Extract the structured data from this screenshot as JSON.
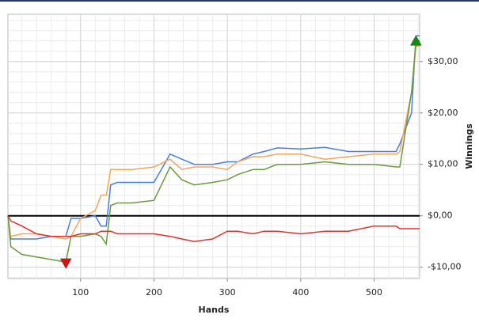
{
  "chart_data": {
    "type": "line",
    "x_label": "Hands",
    "y_label": "Winnings",
    "xlim": [
      1,
      562
    ],
    "ylim": [
      -12.2,
      39.2
    ],
    "xticks": [
      100,
      200,
      300,
      400,
      500
    ],
    "yticks": [
      {
        "value": -10,
        "label": "-$10,00"
      },
      {
        "value": 0,
        "label": "$0,00"
      },
      {
        "value": 10,
        "label": "$10,00"
      },
      {
        "value": 20,
        "label": "$20,00"
      },
      {
        "value": 30,
        "label": "$30,00"
      }
    ],
    "grid": true,
    "x": [
      1,
      5,
      20,
      40,
      60,
      80,
      87,
      100,
      120,
      128,
      135,
      141,
      150,
      170,
      200,
      222,
      238,
      255,
      280,
      300,
      314,
      335,
      350,
      368,
      400,
      433,
      465,
      500,
      530,
      535,
      551,
      557,
      562
    ],
    "series": [
      {
        "color": "#4a7de0",
        "values": [
          0,
          -4.5,
          -4.5,
          -4.5,
          -4,
          -4,
          -0.5,
          -0.5,
          0,
          -2,
          -2,
          6,
          6.5,
          6.5,
          6.5,
          12,
          11,
          10,
          10,
          10.5,
          10.5,
          12,
          12.5,
          13.2,
          13,
          13.3,
          12.5,
          12.5,
          12.5,
          14,
          20,
          35,
          35
        ]
      },
      {
        "color": "#f5a55a",
        "values": [
          0,
          -4,
          -3.5,
          -3.5,
          -4,
          -4.5,
          -4,
          -0.5,
          1,
          4,
          4,
          9,
          9,
          9,
          9.5,
          11,
          9,
          9.5,
          9.5,
          9,
          10.5,
          11.5,
          11.5,
          12,
          12,
          11,
          11.5,
          12,
          12,
          12.5,
          24,
          33,
          33
        ]
      },
      {
        "color": "#6a9a40",
        "values": [
          0,
          -6,
          -7.5,
          -8,
          -8.5,
          -9,
          -4,
          -4,
          -3.5,
          -4,
          -5.5,
          2,
          2.5,
          2.5,
          3,
          9.5,
          7,
          6,
          6.5,
          7,
          8,
          9,
          9,
          10,
          10,
          10.5,
          10,
          10,
          9.5,
          9.5,
          24,
          34,
          34
        ]
      },
      {
        "color": "#e03030",
        "values": [
          0,
          -1,
          -2,
          -3.5,
          -4,
          -4,
          -4,
          -3.5,
          -3.5,
          -3,
          -3,
          -3,
          -3.5,
          -3.5,
          -3.5,
          -4,
          -4.5,
          -5,
          -4.5,
          -3,
          -3,
          -3.5,
          -3,
          -3,
          -3.5,
          -3,
          -3,
          -2,
          -2,
          -2.5,
          -2.5,
          -2.5,
          -2.5
        ]
      }
    ],
    "markers": [
      {
        "x": 557,
        "y": 34,
        "color": "#138a13",
        "shape": "up"
      },
      {
        "x": 80,
        "y": -9.2,
        "color": "#d81010",
        "shape": "down"
      }
    ]
  }
}
